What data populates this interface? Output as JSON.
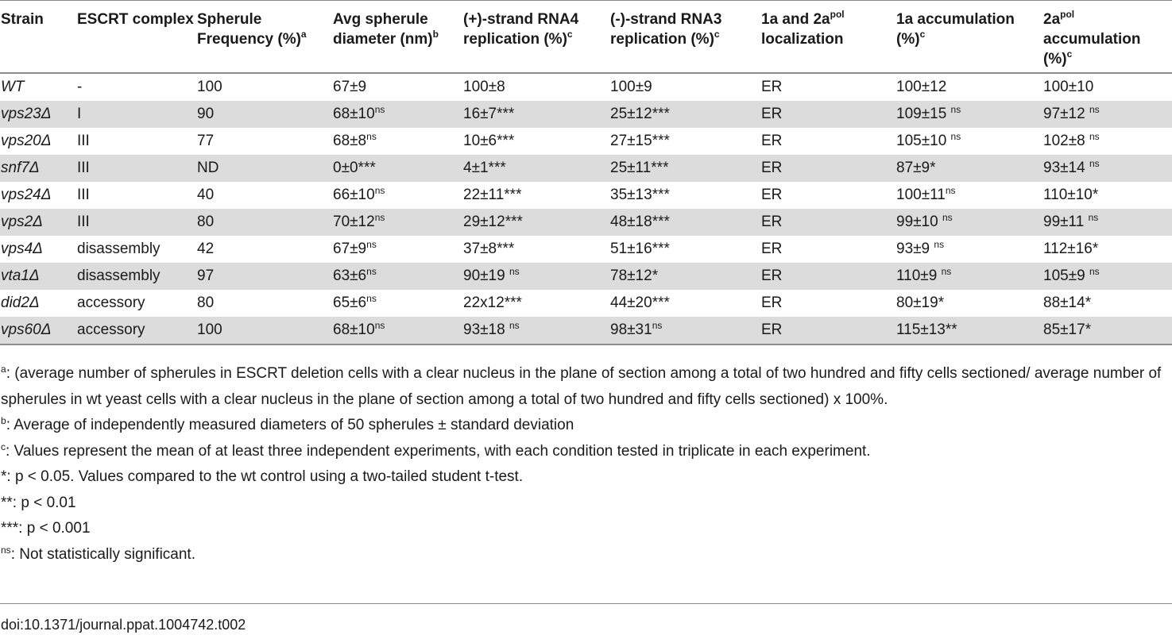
{
  "table": {
    "headers": [
      {
        "text": "Strain",
        "sup": ""
      },
      {
        "text": "ESCRT complex",
        "sup": ""
      },
      {
        "text": "Spherule Frequency (%)",
        "sup": "a"
      },
      {
        "text": "Avg spherule diameter (nm)",
        "sup": "b"
      },
      {
        "text": "(+)-strand RNA4 replication (%)",
        "sup": "c"
      },
      {
        "text": "(-)-strand RNA3 replication (%)",
        "sup": "c"
      },
      {
        "text": "1a and 2a",
        "sup": "pol",
        "after": " localization"
      },
      {
        "text": "1a accumulation (%)",
        "sup": "c"
      },
      {
        "text": "2a",
        "sup": "pol",
        "after": " accumulation (%)",
        "sup2": "c"
      }
    ],
    "rows": [
      [
        "WT",
        "-",
        "100",
        {
          "v": "67±9"
        },
        {
          "v": "100±8"
        },
        {
          "v": "100±9"
        },
        "ER",
        {
          "v": "100±12"
        },
        {
          "v": "100±10"
        }
      ],
      [
        "vps23Δ",
        "I",
        "90",
        {
          "v": "68±10",
          "s": "ns"
        },
        {
          "v": "16±7***"
        },
        {
          "v": "25±12***"
        },
        "ER",
        {
          "v": "109±15 ",
          "s": "ns"
        },
        {
          "v": "97±12 ",
          "s": "ns"
        }
      ],
      [
        "vps20Δ",
        "III",
        "77",
        {
          "v": "68±8",
          "s": "ns"
        },
        {
          "v": "10±6***"
        },
        {
          "v": "27±15***"
        },
        "ER",
        {
          "v": "105±10 ",
          "s": "ns"
        },
        {
          "v": "102±8 ",
          "s": "ns"
        }
      ],
      [
        "snf7Δ",
        "III",
        "ND",
        {
          "v": "0±0***"
        },
        {
          "v": "4±1***"
        },
        {
          "v": "25±11***"
        },
        "ER",
        {
          "v": "87±9*"
        },
        {
          "v": "93±14 ",
          "s": "ns"
        }
      ],
      [
        "vps24Δ",
        "III",
        "40",
        {
          "v": "66±10",
          "s": "ns"
        },
        {
          "v": "22±11***"
        },
        {
          "v": "35±13***"
        },
        "ER",
        {
          "v": "100±11",
          "s": "ns"
        },
        {
          "v": "110±10*"
        }
      ],
      [
        "vps2Δ",
        "III",
        "80",
        {
          "v": "70±12",
          "s": "ns"
        },
        {
          "v": "29±12***"
        },
        {
          "v": "48±18***"
        },
        "ER",
        {
          "v": "99±10 ",
          "s": "ns"
        },
        {
          "v": "99±11 ",
          "s": "ns"
        }
      ],
      [
        "vps4Δ",
        "disassembly",
        "42",
        {
          "v": "67±9",
          "s": "ns"
        },
        {
          "v": "37±8***"
        },
        {
          "v": "51±16***"
        },
        "ER",
        {
          "v": "93±9 ",
          "s": "ns"
        },
        {
          "v": "112±16*"
        }
      ],
      [
        "vta1Δ",
        "disassembly",
        "97",
        {
          "v": "63±6",
          "s": "ns"
        },
        {
          "v": "90±19 ",
          "s": "ns"
        },
        {
          "v": "78±12*"
        },
        "ER",
        {
          "v": "110±9 ",
          "s": "ns"
        },
        {
          "v": "105±9 ",
          "s": "ns"
        }
      ],
      [
        "did2Δ",
        "accessory",
        "80",
        {
          "v": "65±6",
          "s": "ns"
        },
        {
          "v": "22x12***"
        },
        {
          "v": "44±20***"
        },
        "ER",
        {
          "v": "80±19*"
        },
        {
          "v": "88±14*"
        }
      ],
      [
        "vps60Δ",
        "accessory",
        "100",
        {
          "v": "68±10",
          "s": "ns"
        },
        {
          "v": "93±18 ",
          "s": "ns"
        },
        {
          "v": "98±31",
          "s": "ns"
        },
        "ER",
        {
          "v": "115±13**"
        },
        {
          "v": "85±17*"
        }
      ]
    ]
  },
  "footnotes": [
    {
      "mark": "a",
      "text": ": (average number of spherules in ESCRT deletion cells with a clear nucleus in the plane of section among a total of two hundred and fifty cells sectioned/ average number of spherules in wt yeast cells with a clear nucleus in the plane of section among a total of two hundred and fifty cells sectioned) x 100%."
    },
    {
      "mark": "b",
      "text": ": Average of independently measured diameters of 50 spherules ± standard deviation"
    },
    {
      "mark": "c",
      "text": ": Values represent the mean of at least three independent experiments, with each condition tested in triplicate in each experiment."
    },
    {
      "mark": "",
      "text": "*: p < 0.05. Values compared to the wt control using a two-tailed student t-test."
    },
    {
      "mark": "",
      "text": "**: p < 0.01"
    },
    {
      "mark": "",
      "text": "***: p < 0.001"
    },
    {
      "mark": "ns",
      "text": ": Not statistically significant."
    }
  ],
  "doi": "doi:10.1371/journal.ppat.1004742.t002"
}
